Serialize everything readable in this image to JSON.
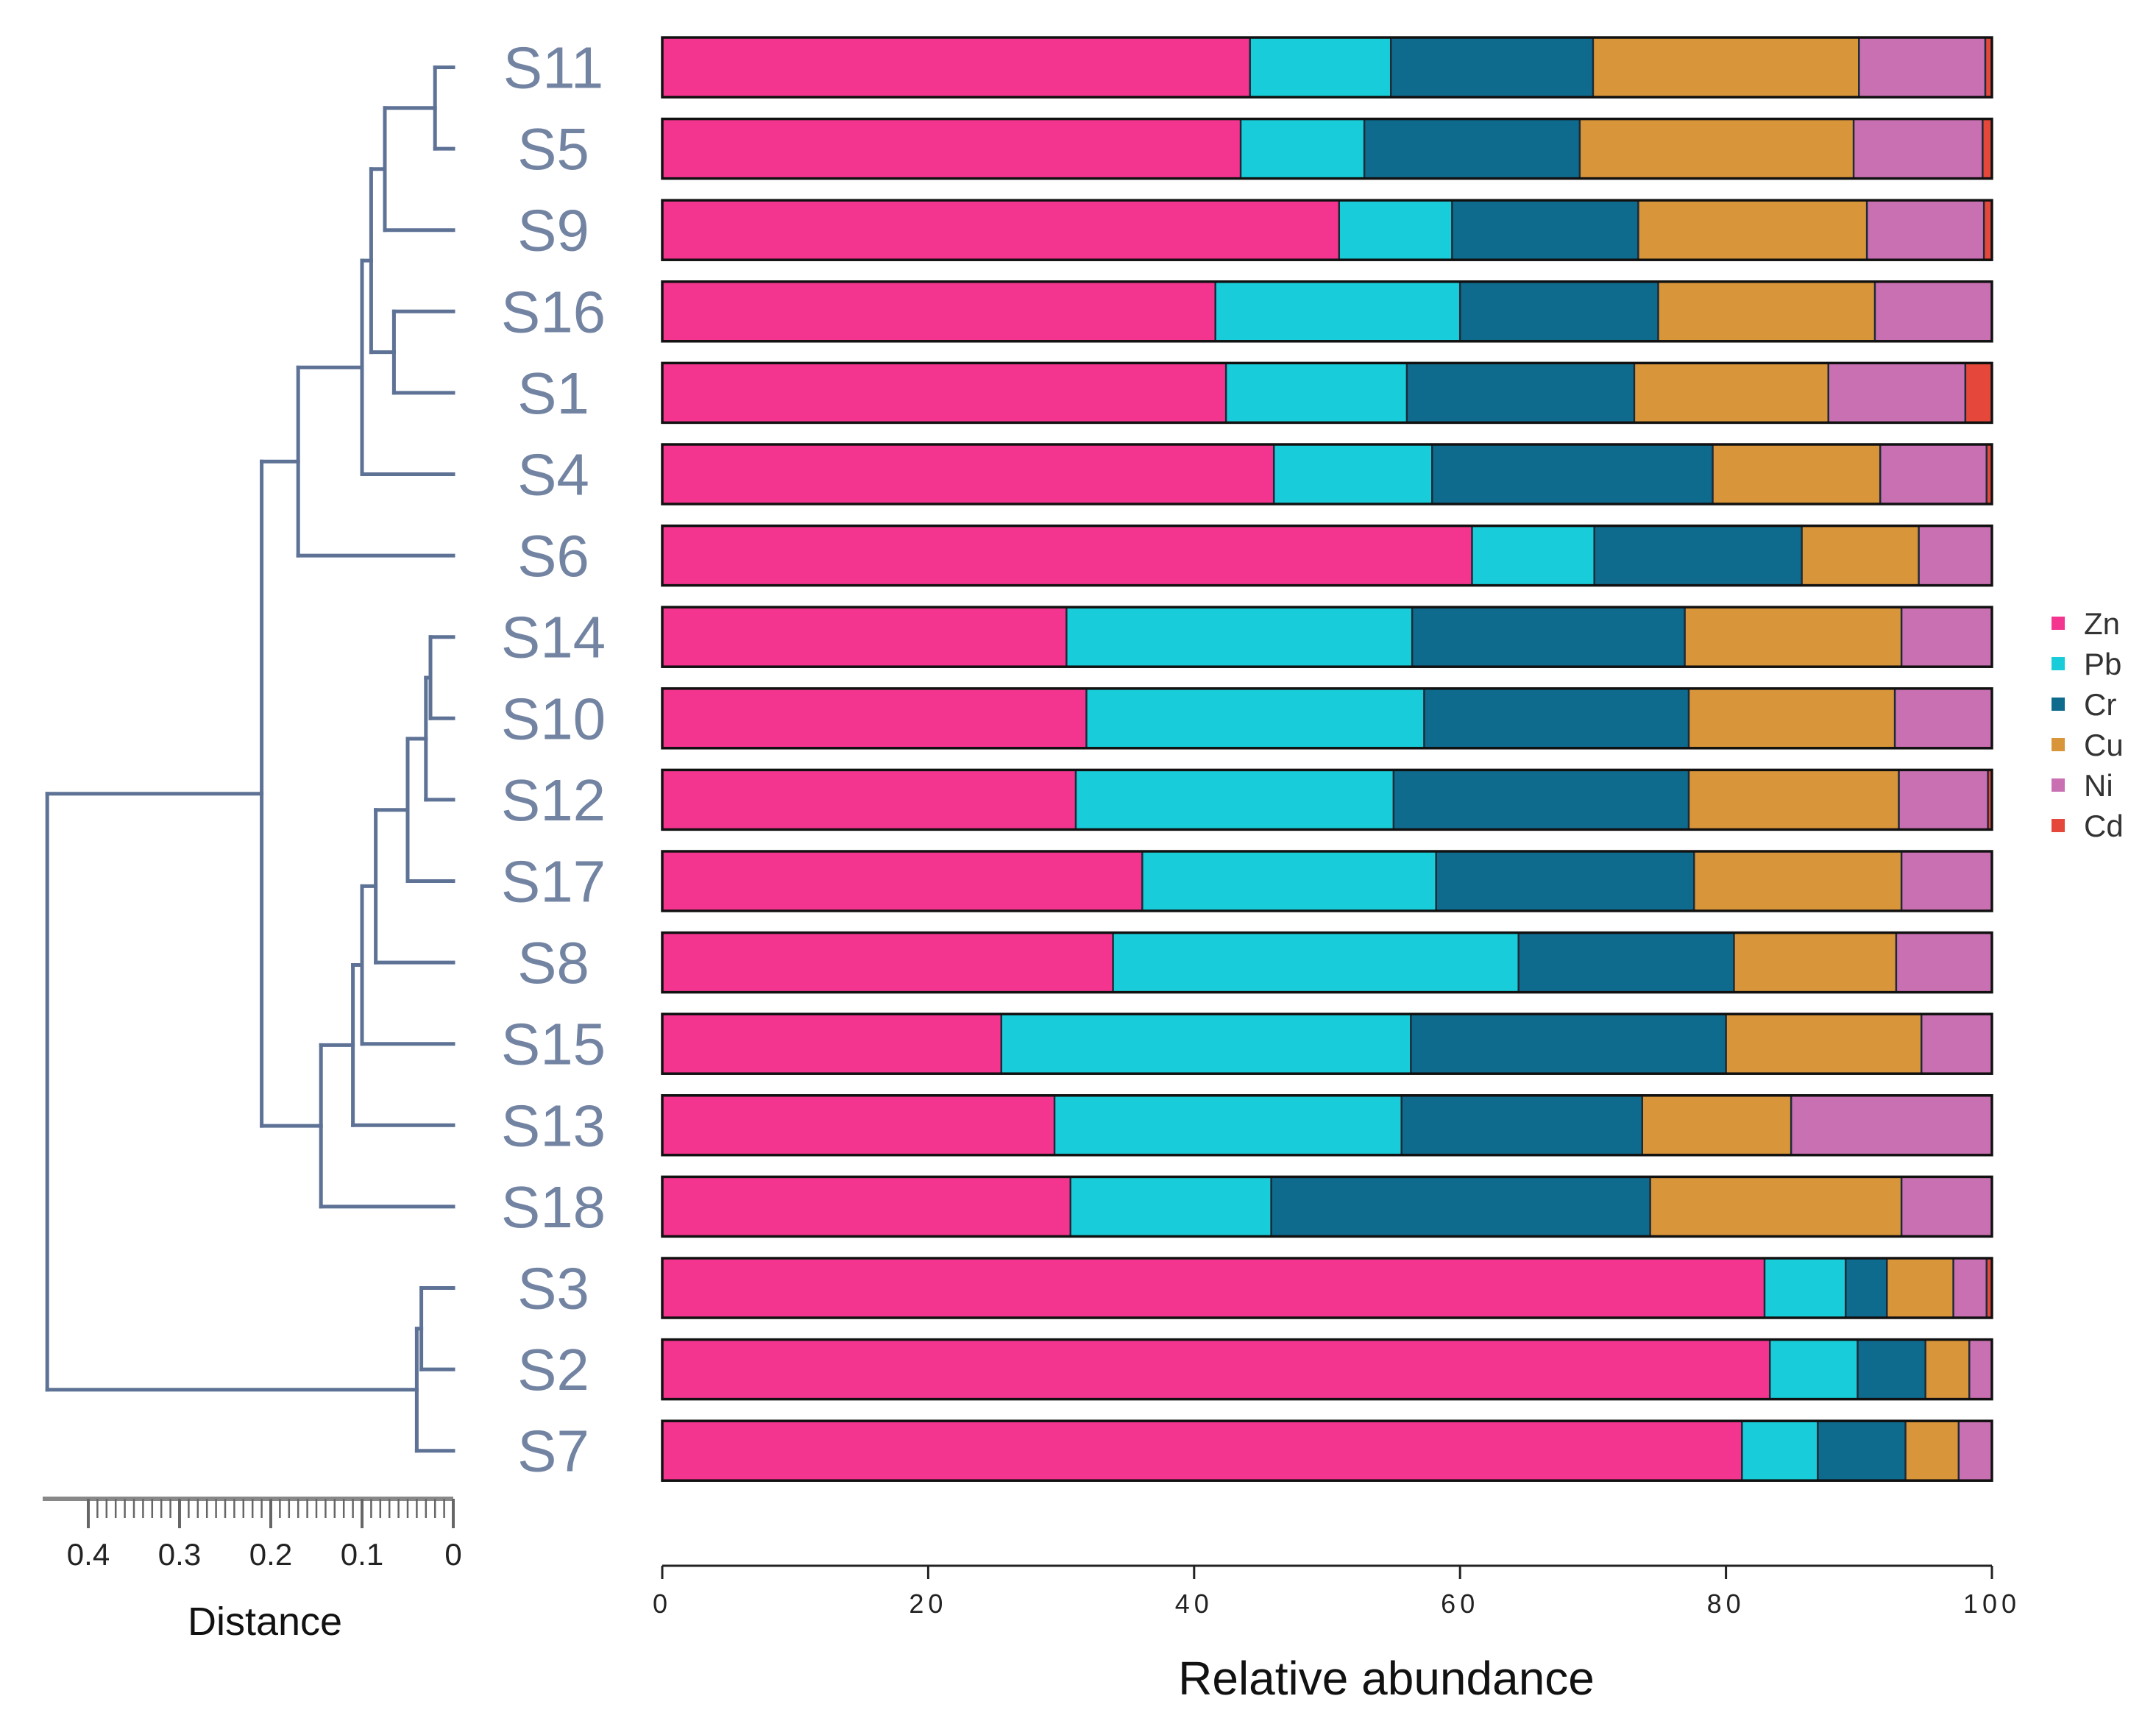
{
  "chart_data": {
    "type": "stacked-bar-with-dendrogram",
    "xlabel": "Relative abundance",
    "xlim": [
      0,
      100
    ],
    "xticks": [
      "0",
      "20",
      "40",
      "60",
      "80",
      "100"
    ],
    "legend_position": "right",
    "series": [
      {
        "name": "Zn",
        "color": "#f4358f"
      },
      {
        "name": "Pb",
        "color": "#18cdd9"
      },
      {
        "name": "Cr",
        "color": "#0f6b8e"
      },
      {
        "name": "Cu",
        "color": "#d8953a"
      },
      {
        "name": "Ni",
        "color": "#c970b2"
      },
      {
        "name": "Cd",
        "color": "#e5483a"
      }
    ],
    "rows": [
      {
        "label": "S11",
        "values": [
          44.2,
          10.6,
          15.2,
          20.0,
          9.5,
          0.5
        ]
      },
      {
        "label": "S5",
        "values": [
          43.5,
          9.3,
          16.2,
          20.6,
          9.7,
          0.7
        ]
      },
      {
        "label": "S9",
        "values": [
          50.9,
          8.5,
          14.0,
          17.2,
          8.8,
          0.6
        ]
      },
      {
        "label": "S16",
        "values": [
          41.6,
          18.4,
          14.9,
          16.3,
          8.8,
          0.0
        ]
      },
      {
        "label": "S1",
        "values": [
          42.4,
          13.6,
          17.1,
          14.6,
          10.3,
          2.0
        ]
      },
      {
        "label": "S4",
        "values": [
          46.0,
          11.9,
          21.1,
          12.6,
          8.0,
          0.4
        ]
      },
      {
        "label": "S6",
        "values": [
          60.9,
          9.2,
          15.6,
          8.8,
          5.5,
          0.0
        ]
      },
      {
        "label": "S14",
        "values": [
          30.4,
          26.0,
          20.5,
          16.3,
          6.8,
          0.0
        ]
      },
      {
        "label": "S10",
        "values": [
          31.9,
          25.4,
          19.9,
          15.5,
          7.3,
          0.0
        ]
      },
      {
        "label": "S12",
        "values": [
          31.1,
          23.9,
          22.2,
          15.8,
          6.7,
          0.3
        ]
      },
      {
        "label": "S17",
        "values": [
          36.1,
          22.1,
          19.4,
          15.6,
          6.8,
          0.0
        ]
      },
      {
        "label": "S8",
        "values": [
          33.9,
          30.5,
          16.2,
          12.2,
          7.2,
          0.0
        ]
      },
      {
        "label": "S15",
        "values": [
          25.5,
          30.8,
          23.7,
          14.7,
          5.3,
          0.0
        ]
      },
      {
        "label": "S13",
        "values": [
          29.5,
          26.1,
          18.1,
          11.2,
          15.1,
          0.0
        ]
      },
      {
        "label": "S18",
        "values": [
          30.7,
          15.1,
          28.5,
          18.9,
          6.8,
          0.0
        ]
      },
      {
        "label": "S3",
        "values": [
          82.9,
          6.1,
          3.1,
          5.0,
          2.5,
          0.4
        ]
      },
      {
        "label": "S2",
        "values": [
          83.3,
          6.6,
          5.1,
          3.3,
          1.7,
          0.0
        ]
      },
      {
        "label": "S7",
        "values": [
          81.2,
          5.7,
          6.6,
          4.0,
          2.5,
          0.0
        ]
      }
    ],
    "dendrogram": {
      "xlabel": "Distance",
      "xlim": [
        0.45,
        0
      ],
      "xticks": [
        "0.4",
        "0.3",
        "0.2",
        "0.1",
        "0"
      ],
      "merges": [
        {
          "children": [
            "S11",
            "S5"
          ],
          "height": 0.02
        },
        {
          "children": [
            "S16",
            "S1"
          ],
          "height": 0.065
        },
        {
          "children": [
            "S11+S5",
            "S9"
          ],
          "height": 0.075
        },
        {
          "children": [
            "A",
            "B"
          ],
          "height": 0.09
        },
        {
          "children": [
            "C",
            "S4"
          ],
          "height": 0.1
        },
        {
          "children": [
            "D",
            "S6"
          ],
          "height": 0.17
        },
        {
          "children": [
            "S14",
            "S10"
          ],
          "height": 0.025
        },
        {
          "children": [
            "E",
            "S12"
          ],
          "height": 0.03
        },
        {
          "children": [
            "F",
            "S17"
          ],
          "height": 0.05
        },
        {
          "children": [
            "G",
            "S8"
          ],
          "height": 0.085
        },
        {
          "children": [
            "H",
            "S15"
          ],
          "height": 0.1
        },
        {
          "children": [
            "I",
            "S13"
          ],
          "height": 0.11
        },
        {
          "children": [
            "J",
            "S18"
          ],
          "height": 0.145
        },
        {
          "children": [
            "K",
            "L"
          ],
          "height": 0.21
        },
        {
          "children": [
            "S3",
            "S2"
          ],
          "height": 0.035
        },
        {
          "children": [
            "M",
            "S7"
          ],
          "height": 0.04
        },
        {
          "children": [
            "N",
            "O"
          ],
          "height": 0.445
        }
      ]
    }
  }
}
